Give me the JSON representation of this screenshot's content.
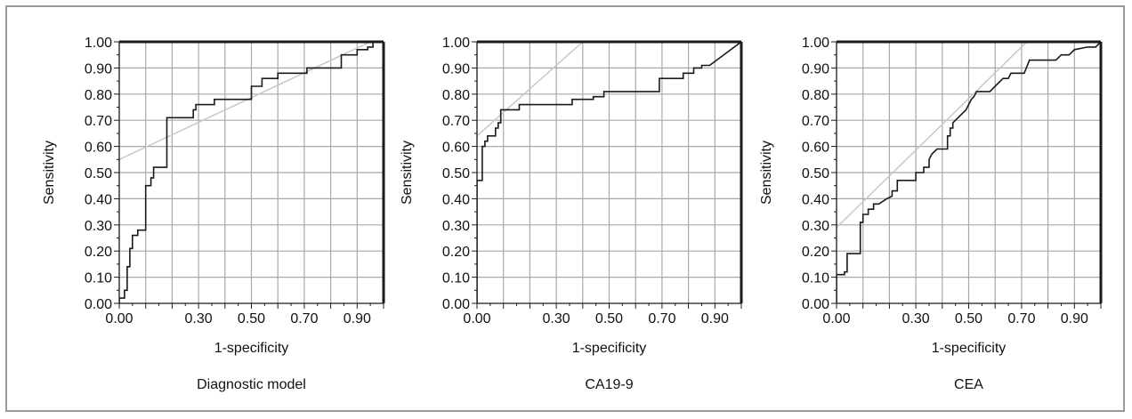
{
  "chart_data": [
    {
      "type": "line",
      "caption": "Diagnostic model",
      "xlabel": "1-specificity",
      "ylabel": "Sensitivity",
      "xlim": [
        0,
        1
      ],
      "ylim": [
        0,
        1
      ],
      "x_tick_labels": [
        "0.00",
        "0.30",
        "0.50",
        "0.70",
        "0.90"
      ],
      "x_tick_values": [
        0.0,
        0.3,
        0.5,
        0.7,
        0.9
      ],
      "y_tick_labels": [
        "0.00",
        "0.10",
        "0.20",
        "0.30",
        "0.40",
        "0.50",
        "0.60",
        "0.70",
        "0.80",
        "0.90",
        "1.00"
      ],
      "grid": true,
      "reference_line": [
        [
          0,
          0.55
        ],
        [
          0.95,
          1.0
        ]
      ],
      "roc": [
        [
          0,
          0
        ],
        [
          0,
          0.02
        ],
        [
          0.02,
          0.02
        ],
        [
          0.02,
          0.05
        ],
        [
          0.03,
          0.05
        ],
        [
          0.03,
          0.14
        ],
        [
          0.04,
          0.14
        ],
        [
          0.04,
          0.21
        ],
        [
          0.05,
          0.21
        ],
        [
          0.05,
          0.26
        ],
        [
          0.07,
          0.26
        ],
        [
          0.07,
          0.28
        ],
        [
          0.1,
          0.28
        ],
        [
          0.1,
          0.45
        ],
        [
          0.12,
          0.45
        ],
        [
          0.12,
          0.48
        ],
        [
          0.13,
          0.48
        ],
        [
          0.13,
          0.52
        ],
        [
          0.18,
          0.52
        ],
        [
          0.18,
          0.71
        ],
        [
          0.28,
          0.71
        ],
        [
          0.28,
          0.74
        ],
        [
          0.29,
          0.74
        ],
        [
          0.29,
          0.76
        ],
        [
          0.36,
          0.76
        ],
        [
          0.36,
          0.78
        ],
        [
          0.5,
          0.78
        ],
        [
          0.5,
          0.83
        ],
        [
          0.54,
          0.83
        ],
        [
          0.54,
          0.86
        ],
        [
          0.6,
          0.86
        ],
        [
          0.6,
          0.88
        ],
        [
          0.71,
          0.88
        ],
        [
          0.71,
          0.9
        ],
        [
          0.84,
          0.9
        ],
        [
          0.84,
          0.95
        ],
        [
          0.9,
          0.95
        ],
        [
          0.9,
          0.97
        ],
        [
          0.94,
          0.97
        ],
        [
          0.94,
          0.98
        ],
        [
          0.96,
          0.98
        ],
        [
          0.96,
          1.0
        ],
        [
          1.0,
          1.0
        ]
      ]
    },
    {
      "type": "line",
      "caption": "CA19-9",
      "xlabel": "1-specificity",
      "ylabel": "Sensitivity",
      "xlim": [
        0,
        1
      ],
      "ylim": [
        0,
        1
      ],
      "x_tick_labels": [
        "0.00",
        "0.30",
        "0.50",
        "0.70",
        "0.90"
      ],
      "x_tick_values": [
        0.0,
        0.3,
        0.5,
        0.7,
        0.9
      ],
      "y_tick_labels": [
        "0.00",
        "0.10",
        "0.20",
        "0.30",
        "0.40",
        "0.50",
        "0.60",
        "0.70",
        "0.80",
        "0.90",
        "1.00"
      ],
      "grid": true,
      "reference_line": [
        [
          0,
          0.64
        ],
        [
          0.4,
          1.0
        ]
      ],
      "roc": [
        [
          0,
          0
        ],
        [
          0,
          0.47
        ],
        [
          0.02,
          0.47
        ],
        [
          0.02,
          0.6
        ],
        [
          0.03,
          0.6
        ],
        [
          0.03,
          0.62
        ],
        [
          0.04,
          0.62
        ],
        [
          0.04,
          0.64
        ],
        [
          0.07,
          0.64
        ],
        [
          0.07,
          0.67
        ],
        [
          0.08,
          0.67
        ],
        [
          0.08,
          0.69
        ],
        [
          0.09,
          0.69
        ],
        [
          0.09,
          0.74
        ],
        [
          0.16,
          0.74
        ],
        [
          0.16,
          0.76
        ],
        [
          0.36,
          0.76
        ],
        [
          0.36,
          0.78
        ],
        [
          0.44,
          0.78
        ],
        [
          0.44,
          0.79
        ],
        [
          0.48,
          0.79
        ],
        [
          0.48,
          0.81
        ],
        [
          0.69,
          0.81
        ],
        [
          0.69,
          0.86
        ],
        [
          0.78,
          0.86
        ],
        [
          0.78,
          0.88
        ],
        [
          0.82,
          0.88
        ],
        [
          0.82,
          0.9
        ],
        [
          0.85,
          0.9
        ],
        [
          0.85,
          0.91
        ],
        [
          0.88,
          0.91
        ],
        [
          1.0,
          1.0
        ]
      ]
    },
    {
      "type": "line",
      "caption": "CEA",
      "xlabel": "1-specificity",
      "ylabel": "Sensitivity",
      "xlim": [
        0,
        1
      ],
      "ylim": [
        0,
        1
      ],
      "x_tick_labels": [
        "0.00",
        "0.30",
        "0.50",
        "0.70",
        "0.90"
      ],
      "x_tick_values": [
        0.0,
        0.3,
        0.5,
        0.7,
        0.9
      ],
      "y_tick_labels": [
        "0.00",
        "0.10",
        "0.20",
        "0.30",
        "0.40",
        "0.50",
        "0.60",
        "0.70",
        "0.80",
        "0.90",
        "1.00"
      ],
      "grid": true,
      "reference_line": [
        [
          0,
          0.29
        ],
        [
          0.72,
          1.0
        ]
      ],
      "roc": [
        [
          0,
          0
        ],
        [
          0,
          0.11
        ],
        [
          0.03,
          0.11
        ],
        [
          0.03,
          0.12
        ],
        [
          0.04,
          0.12
        ],
        [
          0.04,
          0.19
        ],
        [
          0.09,
          0.19
        ],
        [
          0.09,
          0.31
        ],
        [
          0.1,
          0.31
        ],
        [
          0.1,
          0.34
        ],
        [
          0.12,
          0.34
        ],
        [
          0.12,
          0.36
        ],
        [
          0.14,
          0.36
        ],
        [
          0.14,
          0.38
        ],
        [
          0.16,
          0.38
        ],
        [
          0.19,
          0.4
        ],
        [
          0.21,
          0.41
        ],
        [
          0.21,
          0.43
        ],
        [
          0.23,
          0.43
        ],
        [
          0.23,
          0.47
        ],
        [
          0.3,
          0.47
        ],
        [
          0.3,
          0.5
        ],
        [
          0.33,
          0.5
        ],
        [
          0.33,
          0.52
        ],
        [
          0.35,
          0.52
        ],
        [
          0.35,
          0.55
        ],
        [
          0.36,
          0.57
        ],
        [
          0.38,
          0.59
        ],
        [
          0.42,
          0.59
        ],
        [
          0.42,
          0.64
        ],
        [
          0.43,
          0.64
        ],
        [
          0.43,
          0.67
        ],
        [
          0.44,
          0.67
        ],
        [
          0.44,
          0.69
        ],
        [
          0.47,
          0.72
        ],
        [
          0.49,
          0.74
        ],
        [
          0.51,
          0.78
        ],
        [
          0.52,
          0.79
        ],
        [
          0.53,
          0.81
        ],
        [
          0.58,
          0.81
        ],
        [
          0.6,
          0.83
        ],
        [
          0.61,
          0.84
        ],
        [
          0.63,
          0.86
        ],
        [
          0.65,
          0.86
        ],
        [
          0.66,
          0.88
        ],
        [
          0.71,
          0.88
        ],
        [
          0.73,
          0.93
        ],
        [
          0.83,
          0.93
        ],
        [
          0.85,
          0.95
        ],
        [
          0.88,
          0.95
        ],
        [
          0.9,
          0.97
        ],
        [
          0.95,
          0.98
        ],
        [
          0.98,
          0.98
        ],
        [
          1.0,
          1.0
        ]
      ]
    }
  ]
}
